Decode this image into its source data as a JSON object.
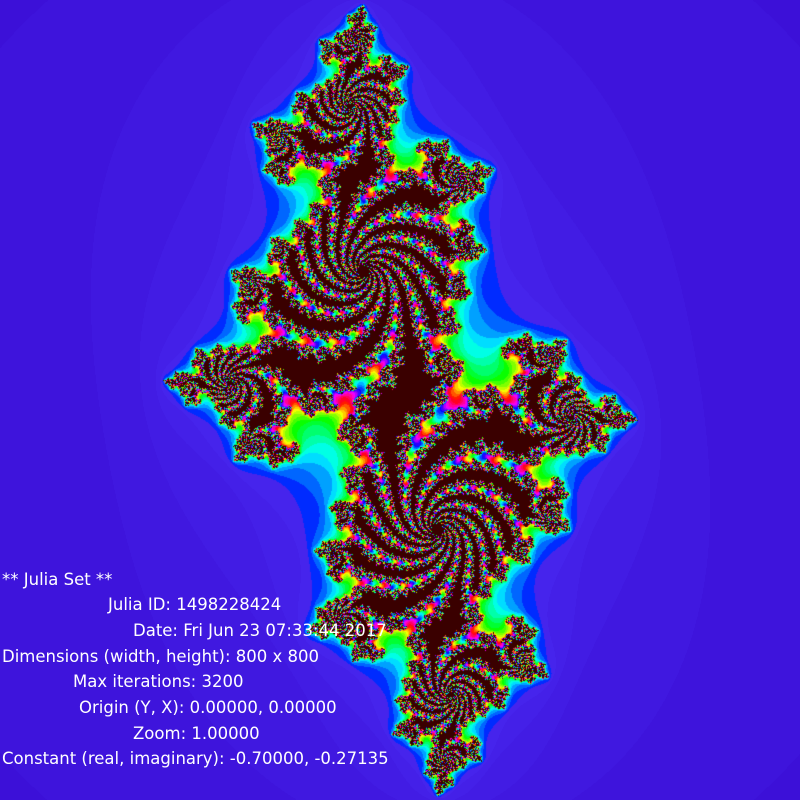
{
  "overlay": {
    "title": "** Julia Set **",
    "julia_id": "Julia ID: 1498228424",
    "date": "Date: Fri Jun 23 07:33:44 2017",
    "dimensions": "Dimensions (width, height): 800 x 800",
    "max_iterations": "Max iterations: 3200",
    "origin": "Origin (Y, X): 0.00000, 0.00000",
    "zoom": "Zoom: 1.00000",
    "constant": "Constant (real, imaginary): -0.70000, -0.27135"
  },
  "fractal": {
    "constant_real": -0.7,
    "constant_imag": -0.27135,
    "origin_y": 0.0,
    "origin_x": 0.0,
    "zoom": 1.0,
    "max_iterations": 3200,
    "colors": {
      "background": "#3c10d8",
      "interior": "#3a0000"
    }
  }
}
